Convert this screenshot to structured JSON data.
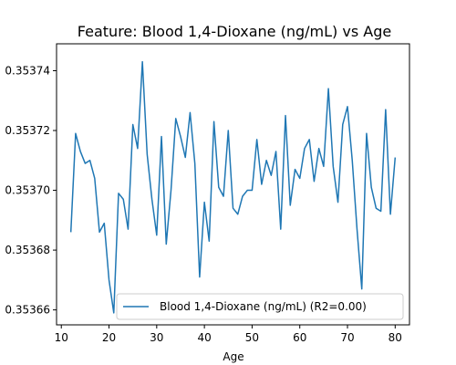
{
  "chart_data": {
    "type": "line",
    "title": "Feature: Blood 1,4-Dioxane (ng/mL) vs Age",
    "xlabel": "Age",
    "ylabel": "",
    "xlim": [
      9,
      83
    ],
    "ylim": [
      0.353655,
      0.353749
    ],
    "x_ticks": [
      10,
      20,
      30,
      40,
      50,
      60,
      70,
      80
    ],
    "x_tick_labels": [
      "10",
      "20",
      "30",
      "40",
      "50",
      "60",
      "70",
      "80"
    ],
    "y_ticks": [
      0.35366,
      0.35368,
      0.3537,
      0.35372,
      0.35374
    ],
    "y_tick_labels": [
      "0.35366",
      "0.35368",
      "0.35370",
      "0.35372",
      "0.35374"
    ],
    "grid": false,
    "legend_position": "lower-right",
    "series": [
      {
        "name": "Blood 1,4-Dioxane (ng/mL) (R2=0.00)",
        "color": "#1f77b4",
        "x": [
          12,
          13,
          14,
          15,
          16,
          17,
          18,
          19,
          20,
          21,
          22,
          23,
          24,
          25,
          26,
          27,
          28,
          29,
          30,
          31,
          32,
          33,
          34,
          35,
          36,
          37,
          38,
          39,
          40,
          41,
          42,
          43,
          44,
          45,
          46,
          47,
          48,
          49,
          50,
          51,
          52,
          53,
          54,
          55,
          56,
          57,
          58,
          59,
          60,
          61,
          62,
          63,
          64,
          65,
          66,
          67,
          68,
          69,
          70,
          71,
          72,
          73,
          74,
          75,
          76,
          77,
          78,
          79,
          80
        ],
        "y": [
          0.353686,
          0.353719,
          0.353713,
          0.353709,
          0.35371,
          0.353704,
          0.353686,
          0.353689,
          0.35367,
          0.353659,
          0.353699,
          0.353697,
          0.353687,
          0.353722,
          0.353714,
          0.353743,
          0.353712,
          0.353697,
          0.353685,
          0.353718,
          0.353682,
          0.3537,
          0.353724,
          0.353718,
          0.353711,
          0.353726,
          0.353709,
          0.353671,
          0.353696,
          0.353683,
          0.353723,
          0.353701,
          0.353698,
          0.35372,
          0.353694,
          0.353692,
          0.353698,
          0.3537,
          0.3537,
          0.353717,
          0.353702,
          0.35371,
          0.353705,
          0.353713,
          0.353687,
          0.353725,
          0.353695,
          0.353707,
          0.353704,
          0.353714,
          0.353717,
          0.353703,
          0.353714,
          0.353708,
          0.353734,
          0.353708,
          0.353696,
          0.353722,
          0.353728,
          0.35371,
          0.353687,
          0.353667,
          0.353719,
          0.353701,
          0.353694,
          0.353693,
          0.353727,
          0.353692,
          0.353711
        ]
      }
    ]
  }
}
